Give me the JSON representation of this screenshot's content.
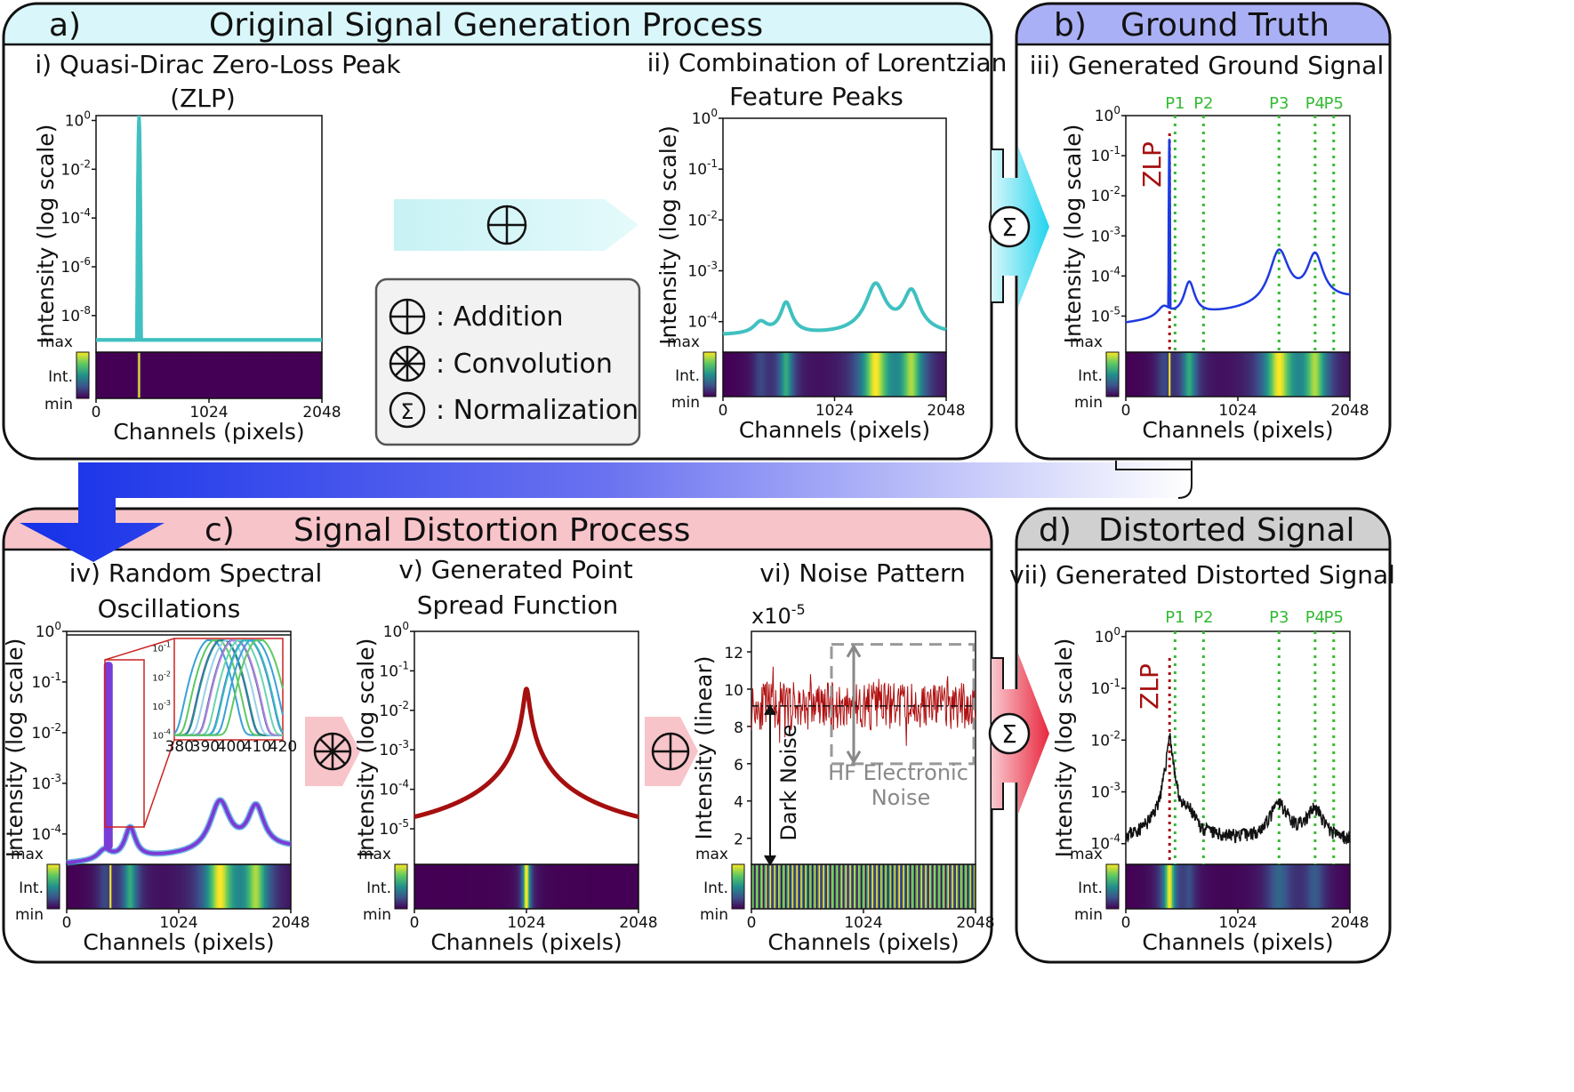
{
  "panels": {
    "a": {
      "letter": "a)",
      "title": "Original Signal Generation Process",
      "header_color": "#d9f7fa"
    },
    "b": {
      "letter": "b)",
      "title": "Ground Truth",
      "header_color": "#aab0f5"
    },
    "c": {
      "letter": "c)",
      "title": "Signal Distortion Process",
      "header_color": "#f7c4c9"
    },
    "d": {
      "letter": "d)",
      "title": "Distorted Signal",
      "header_color": "#d0d0d0"
    }
  },
  "subtitles": {
    "i_line1": "i) Quasi-Dirac Zero-Loss Peak",
    "i_line2": "(ZLP)",
    "ii_line1": "ii) Combination of Lorentzian",
    "ii_line2": "Feature Peaks",
    "iii": "iii) Generated Ground Signal",
    "iv_line1": "iv) Random Spectral",
    "iv_line2": "Oscillations",
    "v_line1": "v) Generated Point",
    "v_line2": "Spread Function",
    "vi": "vi) Noise Pattern",
    "vii": "vii) Generated Distorted Signal"
  },
  "legend": {
    "addition": ": Addition",
    "convolution": ": Convolution",
    "normalization": ": Normalization"
  },
  "axes": {
    "ylabel_log": "Intensity (log scale)",
    "ylabel_linear": "Intensity (linear)",
    "xlabel": "Channels (pixels)",
    "x_ticks": [
      "0",
      "1024",
      "2048"
    ],
    "colorbar_max": "max",
    "colorbar_int": "Int.",
    "colorbar_min": "min",
    "noise_multiplier": "x10",
    "noise_multiplier_exp": "-5",
    "noise_y_ticks": [
      "12",
      "10",
      "8",
      "6",
      "4",
      "2"
    ],
    "inset_x_ticks": [
      "380",
      "390",
      "400",
      "410",
      "420"
    ]
  },
  "peak_labels": [
    "P1",
    "P2",
    "P3",
    "P4",
    "P5"
  ],
  "annotations": {
    "zlp": "ZLP",
    "dark_noise": "Dark Noise",
    "hf_line1": "HF Electronic",
    "hf_line2": "Noise"
  },
  "colors": {
    "teal": "#40c0c0",
    "blue": "#1f3ae0",
    "red_dark": "#a50f0f",
    "black": "#111111",
    "green": "#33bb33",
    "purple": "#7a3cd6",
    "viridis_low": "#440154",
    "viridis_high": "#fde725"
  }
}
